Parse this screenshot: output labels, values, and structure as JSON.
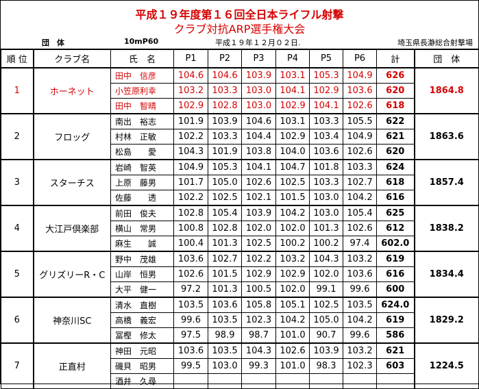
{
  "header": {
    "title": "平成１９年度第１６回全日本ライフル射撃",
    "subtitle": "クラブ対抗ARP選手権大会",
    "category": "団　体",
    "event": "10mP60",
    "date": "平成１９年１２月０２日.",
    "venue": "埼玉県長瀞総合射撃場"
  },
  "columns": [
    "順 位",
    "クラブ名",
    "氏　名",
    "P1",
    "P2",
    "P3",
    "P4",
    "P5",
    "P6",
    "計",
    "団　体"
  ],
  "highlight_color": "#d40000",
  "teams": [
    {
      "rank": "1",
      "club": "ホーネット",
      "team_total": "1864.8",
      "highlight": true,
      "members": [
        {
          "name": "田中　信彦",
          "scores": [
            "104.6",
            "104.6",
            "103.9",
            "103.1",
            "105.3",
            "104.9"
          ],
          "total": "626"
        },
        {
          "name": "小笠原利幸",
          "scores": [
            "103.2",
            "103.3",
            "103.0",
            "104.1",
            "102.9",
            "103.6"
          ],
          "total": "620"
        },
        {
          "name": "田中　智晴",
          "scores": [
            "102.9",
            "102.8",
            "103.0",
            "102.9",
            "104.1",
            "102.6"
          ],
          "total": "618"
        }
      ]
    },
    {
      "rank": "2",
      "club": "フロッグ",
      "team_total": "1863.6",
      "members": [
        {
          "name": "南出　裕志",
          "scores": [
            "101.9",
            "103.9",
            "104.6",
            "103.1",
            "103.3",
            "105.5"
          ],
          "total": "622"
        },
        {
          "name": "村林　正敏",
          "scores": [
            "102.2",
            "103.3",
            "104.4",
            "102.9",
            "103.4",
            "104.9"
          ],
          "total": "621"
        },
        {
          "name": "松島　　愛",
          "scores": [
            "104.3",
            "101.9",
            "103.8",
            "104.0",
            "103.6",
            "102.6"
          ],
          "total": "620"
        }
      ]
    },
    {
      "rank": "3",
      "club": "スターチス",
      "team_total": "1857.4",
      "members": [
        {
          "name": "岩崎　智英",
          "scores": [
            "104.9",
            "105.3",
            "104.1",
            "104.7",
            "101.8",
            "103.3"
          ],
          "total": "624"
        },
        {
          "name": "上原　藤男",
          "scores": [
            "101.7",
            "105.0",
            "102.6",
            "102.5",
            "103.3",
            "102.7"
          ],
          "total": "618"
        },
        {
          "name": "佐藤　　透",
          "scores": [
            "102.2",
            "102.5",
            "102.1",
            "101.5",
            "103.0",
            "104.2"
          ],
          "total": "616"
        }
      ]
    },
    {
      "rank": "4",
      "club": "大江戸倶楽部",
      "team_total": "1838.2",
      "members": [
        {
          "name": "前田　俊夫",
          "scores": [
            "102.8",
            "105.4",
            "103.9",
            "104.2",
            "103.0",
            "105.4"
          ],
          "total": "625"
        },
        {
          "name": "横山　常男",
          "scores": [
            "100.8",
            "102.8",
            "102.0",
            "102.0",
            "101.3",
            "102.6"
          ],
          "total": "612"
        },
        {
          "name": "麻生　　誠",
          "scores": [
            "100.4",
            "101.3",
            "102.5",
            "100.2",
            "100.2",
            "97.4"
          ],
          "total": "602.0"
        }
      ]
    },
    {
      "rank": "5",
      "club": "グリズリーR・C",
      "team_total": "1834.4",
      "members": [
        {
          "name": "野中　茂雄",
          "scores": [
            "103.6",
            "102.7",
            "102.2",
            "103.2",
            "104.3",
            "103.2"
          ],
          "total": "619"
        },
        {
          "name": "山岸　恒男",
          "scores": [
            "102.6",
            "101.5",
            "102.9",
            "102.9",
            "102.0",
            "103.6"
          ],
          "total": "616"
        },
        {
          "name": "大平　健一",
          "scores": [
            "97.2",
            "101.3",
            "100.5",
            "102.0",
            "99.1",
            "99.6"
          ],
          "total": "600"
        }
      ]
    },
    {
      "rank": "6",
      "club": "神奈川SC",
      "team_total": "1829.2",
      "members": [
        {
          "name": "清水　直樹",
          "scores": [
            "103.5",
            "103.6",
            "105.8",
            "105.1",
            "102.5",
            "103.5"
          ],
          "total": "624.0"
        },
        {
          "name": "高橋　義宏",
          "scores": [
            "99.6",
            "103.5",
            "102.3",
            "104.2",
            "105.0",
            "104.2"
          ],
          "total": "619"
        },
        {
          "name": "冨樫　修太",
          "scores": [
            "97.5",
            "98.9",
            "98.7",
            "101.0",
            "90.7",
            "99.6"
          ],
          "total": "586"
        }
      ]
    },
    {
      "rank": "7",
      "club": "正直村",
      "team_total": "1224.5",
      "members": [
        {
          "name": "神田　元昭",
          "scores": [
            "103.6",
            "103.5",
            "104.3",
            "102.6",
            "103.9",
            "103.2"
          ],
          "total": "621"
        },
        {
          "name": "磯貝　昭男",
          "scores": [
            "99.5",
            "103.0",
            "99.3",
            "101.0",
            "98.3",
            "102.3"
          ],
          "total": "603"
        },
        {
          "name": "酒井　久尋",
          "scores": [
            "",
            "",
            "",
            "",
            "",
            ""
          ],
          "total": ""
        }
      ]
    }
  ]
}
